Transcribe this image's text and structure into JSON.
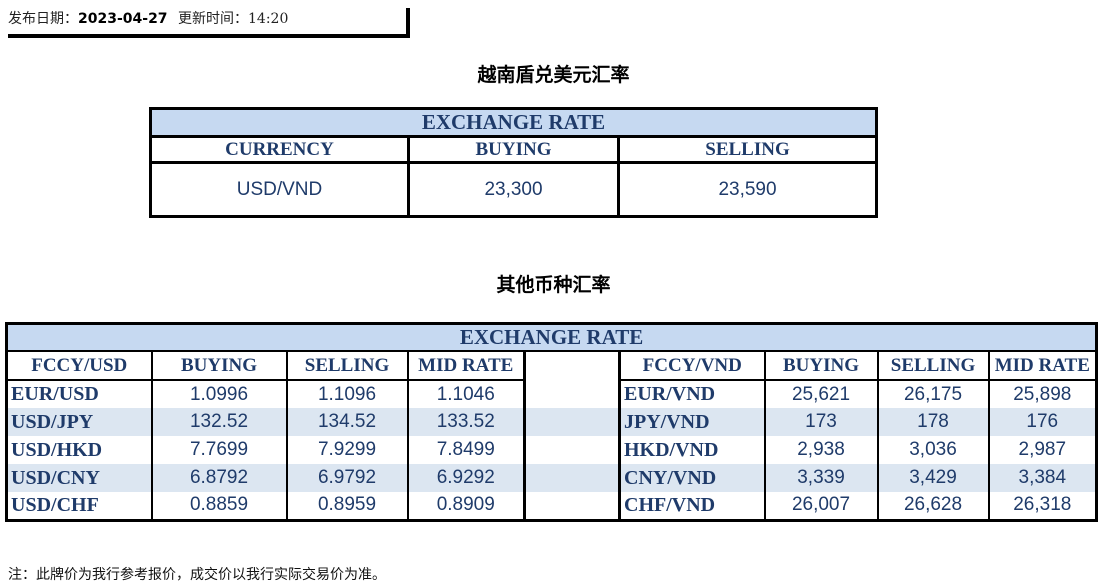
{
  "header": {
    "publish_label": "发布日期：",
    "publish_date": "2023-04-27",
    "update_label": "更新时间：",
    "update_time": "14:20"
  },
  "section1": {
    "title": "越南盾兑美元汇率",
    "caption": "EXCHANGE RATE",
    "columns": [
      "CURRENCY",
      "BUYING",
      "SELLING"
    ],
    "row": [
      "USD/VND",
      "23,300",
      "23,590"
    ]
  },
  "section2": {
    "title": "其他币种汇率",
    "caption": "EXCHANGE  RATE",
    "left_columns": [
      "FCCY/USD",
      "BUYING",
      "SELLING",
      "MID RATE"
    ],
    "right_columns": [
      "FCCY/VND",
      "BUYING",
      "SELLING",
      "MID RATE"
    ],
    "rows": [
      {
        "l": [
          "EUR/USD",
          "1.0996",
          "1.1096",
          "1.1046"
        ],
        "r": [
          "EUR/VND",
          "25,621",
          "26,175",
          "25,898"
        ]
      },
      {
        "l": [
          "USD/JPY",
          "132.52",
          "134.52",
          "133.52"
        ],
        "r": [
          "JPY/VND",
          "173",
          "178",
          "176"
        ]
      },
      {
        "l": [
          "USD/HKD",
          "7.7699",
          "7.9299",
          "7.8499"
        ],
        "r": [
          "HKD/VND",
          "2,938",
          "3,036",
          "2,987"
        ]
      },
      {
        "l": [
          "USD/CNY",
          "6.8792",
          "6.9792",
          "6.9292"
        ],
        "r": [
          "CNY/VND",
          "3,339",
          "3,429",
          "3,384"
        ]
      },
      {
        "l": [
          "USD/CHF",
          "0.8859",
          "0.8959",
          "0.8909"
        ],
        "r": [
          "CHF/VND",
          "26,007",
          "26,628",
          "26,318"
        ]
      }
    ]
  },
  "note": "注：此牌价为我行参考报价，成交价以我行实际交易价为准。",
  "colors": {
    "text": "#1f3b6a",
    "caption_bg": "#c6d9f1",
    "stripe": "#dce6f1"
  }
}
